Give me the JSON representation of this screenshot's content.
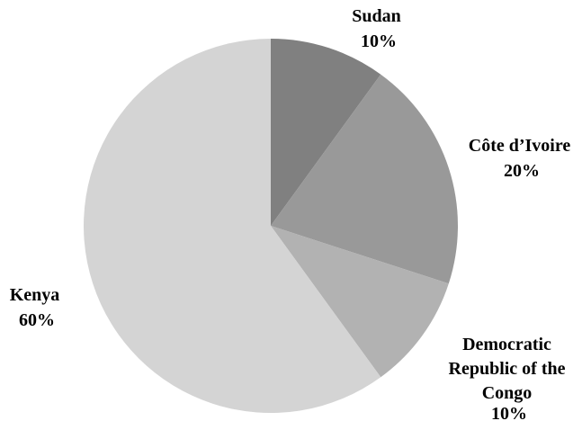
{
  "chart_data": {
    "type": "pie",
    "start_angle_deg": 0,
    "direction": "clockwise",
    "slices": [
      {
        "label": "Sudan",
        "value": 10,
        "value_label": "10%",
        "color": "#808080"
      },
      {
        "label": "Côte d’Ivoire",
        "value": 20,
        "value_label": "20%",
        "color": "#999999"
      },
      {
        "label": "Democratic Republic of the Congo",
        "label_lines": [
          "Democratic",
          "Republic of the",
          "Congo"
        ],
        "value": 10,
        "value_label": "10%",
        "color": "#b2b2b2"
      },
      {
        "label": "Kenya",
        "value": 60,
        "value_label": "60%",
        "color": "#d4d4d4"
      }
    ],
    "legend": "none",
    "data_labels": "outside"
  }
}
